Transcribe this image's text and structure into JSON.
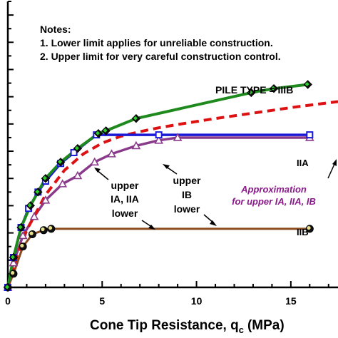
{
  "chart_data": {
    "type": "line",
    "title": "",
    "xlabel": "Cone Tip Resistance, q",
    "xlabel_subscript": "c",
    "xlabel_unit": "(MPa)",
    "ylabel": "",
    "xlim": [
      0,
      17.5
    ],
    "ylim": [
      0,
      10.5
    ],
    "x_ticks": [
      0,
      5,
      10,
      15
    ],
    "y_tick_step": 0.5,
    "notes": {
      "heading": "Notes:",
      "items": [
        "1.  Lower limit applies for unreliable construction.",
        "2.  Upper limit for very careful construction control."
      ]
    },
    "pile_type_label": "PILE TYPE = IIIB",
    "annotations": {
      "upper_ia_iia": [
        "upper",
        "IA, IIA",
        "lower"
      ],
      "upper_ib": [
        "upper",
        "IB",
        "lower"
      ],
      "approximation": [
        "Approximation",
        "for upper IA, IIA, IB"
      ],
      "label_iia": "IIA",
      "label_iib": "IIB"
    },
    "colors": {
      "IIIB": "#1e8a1e",
      "IIA": "#1a1ad6",
      "IB": "#8a3a8a",
      "IIB": "#8a4a1e",
      "approximation": "#dd1111",
      "approximation_text": "#8a1a8a"
    },
    "series": [
      {
        "name": "IIIB",
        "marker": "diamond",
        "x": [
          0,
          0.3,
          0.7,
          1.2,
          1.6,
          2.0,
          2.8,
          3.7,
          4.8,
          5.2,
          6.8,
          12.9,
          14.1,
          15.9
        ],
        "y": [
          0,
          1.1,
          2.2,
          3.0,
          3.5,
          4.0,
          4.6,
          5.1,
          5.65,
          5.75,
          6.2,
          7.15,
          7.3,
          7.45
        ]
      },
      {
        "name": "IIA",
        "marker": "square",
        "x": [
          0,
          0.3,
          0.7,
          1.1,
          1.6,
          2.0,
          2.8,
          3.5,
          4.7,
          8.0,
          16.0
        ],
        "y": [
          0,
          1.1,
          2.2,
          2.9,
          3.5,
          3.9,
          4.55,
          4.95,
          5.6,
          5.6,
          5.6
        ]
      },
      {
        "name": "IB",
        "marker": "triangle",
        "x": [
          0,
          0.3,
          0.8,
          1.4,
          2.0,
          2.9,
          3.7,
          4.6,
          5.5,
          6.8,
          8.0,
          9.0,
          16.0
        ],
        "y": [
          0,
          0.9,
          1.9,
          2.6,
          3.2,
          3.8,
          4.1,
          4.6,
          4.9,
          5.2,
          5.4,
          5.5,
          5.5
        ]
      },
      {
        "name": "IIB",
        "marker": "circle",
        "x": [
          0,
          0.3,
          0.8,
          1.3,
          1.9,
          2.3,
          16.0
        ],
        "y": [
          0,
          0.5,
          1.5,
          1.95,
          2.1,
          2.15,
          2.15
        ]
      },
      {
        "name": "Approximation",
        "style": "dashed",
        "x": [
          0,
          0.5,
          1,
          2,
          3,
          4,
          5,
          6,
          7,
          8,
          9,
          10,
          11,
          12,
          13,
          14,
          15,
          16,
          17,
          17.5
        ],
        "y": [
          0,
          1.2,
          2.1,
          3.4,
          4.3,
          4.9,
          5.3,
          5.55,
          5.72,
          5.86,
          5.98,
          6.09,
          6.2,
          6.3,
          6.4,
          6.5,
          6.6,
          6.69,
          6.78,
          6.82
        ]
      }
    ]
  }
}
